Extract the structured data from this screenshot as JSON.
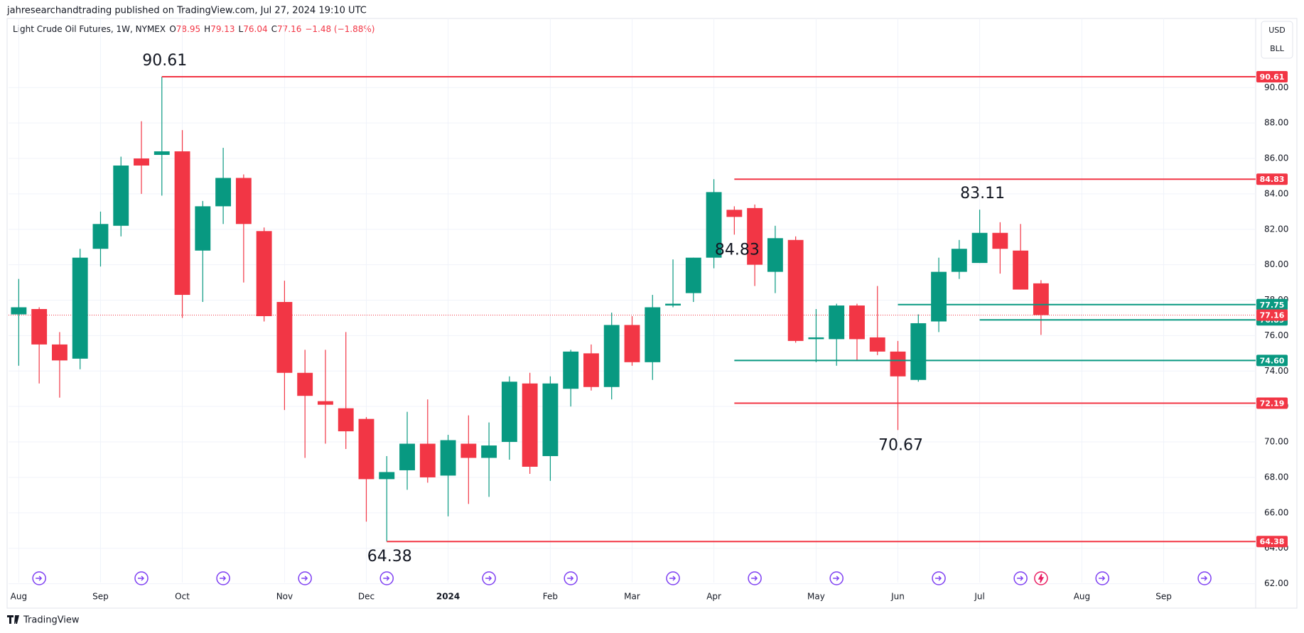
{
  "header": {
    "text": "jahresearchandtrading published on TradingView.com, Jul 27, 2024 19:10 UTC"
  },
  "footer": {
    "brand": "TradingView"
  },
  "chart_data": {
    "type": "candlestick",
    "title": "Light Crude Oil Futures, 1W, NYMEX",
    "ohlc": [
      {
        "label": "O",
        "value": 78.95
      },
      {
        "label": "H",
        "value": 79.13
      },
      {
        "label": "L",
        "value": 76.04
      },
      {
        "label": "C",
        "value": 77.16
      }
    ],
    "change": "−1.48 (−1.88%)",
    "currency": "USD",
    "unit": "BLL",
    "up_color": "#089981",
    "down_color": "#f23645",
    "open": [
      77.2,
      77.5,
      75.5,
      74.7,
      80.9,
      82.2,
      86.0,
      86.2,
      86.4,
      80.8,
      83.3,
      84.9,
      81.9,
      77.9,
      73.9,
      72.3,
      71.9,
      71.3,
      67.9,
      68.4,
      69.9,
      68.1,
      69.9,
      69.1,
      70.0,
      73.3,
      69.2,
      73.0,
      75.0,
      73.1,
      76.6,
      74.5,
      77.7,
      78.4,
      80.4,
      83.1,
      83.2,
      79.6,
      81.4,
      75.8,
      75.8,
      77.7,
      75.9,
      75.1,
      73.5,
      76.8,
      79.6,
      80.1,
      81.8,
      80.8,
      78.95
    ],
    "high": [
      79.2,
      77.6,
      76.2,
      80.9,
      83.0,
      86.1,
      88.1,
      90.61,
      87.6,
      83.6,
      86.6,
      85.1,
      82.1,
      79.1,
      75.2,
      75.2,
      76.2,
      71.4,
      69.2,
      71.7,
      72.4,
      70.4,
      71.5,
      71.1,
      73.7,
      73.9,
      73.7,
      75.2,
      75.5,
      77.3,
      77.1,
      78.3,
      80.3,
      80.4,
      84.83,
      83.3,
      83.4,
      82.2,
      81.6,
      77.5,
      77.8,
      77.8,
      78.8,
      75.7,
      77.2,
      80.4,
      81.4,
      83.11,
      82.4,
      82.3,
      79.13
    ],
    "low": [
      74.3,
      73.3,
      72.5,
      74.1,
      79.9,
      81.6,
      84.0,
      83.9,
      77.0,
      77.9,
      82.3,
      79.0,
      76.8,
      71.8,
      69.1,
      69.9,
      69.6,
      65.5,
      64.38,
      67.3,
      67.7,
      65.8,
      66.5,
      66.9,
      69.0,
      68.2,
      67.8,
      72.0,
      72.9,
      72.4,
      74.3,
      73.5,
      77.6,
      77.9,
      79.8,
      81.7,
      78.8,
      78.4,
      75.6,
      74.5,
      74.3,
      74.6,
      74.9,
      70.67,
      73.4,
      76.2,
      79.2,
      80.1,
      79.5,
      78.6,
      76.04
    ],
    "close": [
      77.6,
      75.5,
      74.6,
      80.4,
      82.3,
      85.6,
      85.6,
      86.4,
      78.3,
      83.3,
      84.9,
      82.3,
      77.1,
      73.9,
      72.6,
      72.1,
      70.6,
      67.9,
      68.3,
      69.9,
      68.0,
      70.1,
      69.1,
      69.8,
      73.4,
      68.6,
      73.3,
      75.1,
      73.1,
      76.6,
      74.5,
      77.6,
      77.8,
      80.4,
      84.1,
      82.7,
      80.0,
      81.5,
      75.7,
      75.9,
      77.7,
      75.8,
      75.1,
      73.7,
      76.7,
      79.6,
      80.9,
      81.8,
      80.9,
      78.6,
      77.16
    ],
    "xlim": [
      -0.5,
      60.5
    ],
    "xticks": [
      {
        "value": 0,
        "label": "Aug"
      },
      {
        "value": 4,
        "label": "Sep"
      },
      {
        "value": 8,
        "label": "Oct"
      },
      {
        "value": 13,
        "label": "Nov"
      },
      {
        "value": 17,
        "label": "Dec"
      },
      {
        "value": 21,
        "label": "2024"
      },
      {
        "value": 26,
        "label": "Feb"
      },
      {
        "value": 30,
        "label": "Mar"
      },
      {
        "value": 34,
        "label": "Apr"
      },
      {
        "value": 39,
        "label": "May"
      },
      {
        "value": 43,
        "label": "Jun"
      },
      {
        "value": 47,
        "label": "Jul"
      },
      {
        "value": 52,
        "label": "Aug"
      },
      {
        "value": 56,
        "label": "Sep"
      }
    ],
    "ylim": [
      60.7,
      93.9
    ],
    "yticks": [
      {
        "value": 62,
        "label": "62.00"
      },
      {
        "value": 64,
        "label": "64.00"
      },
      {
        "value": 66,
        "label": "66.00"
      },
      {
        "value": 68,
        "label": "68.00"
      },
      {
        "value": 70,
        "label": "70.00"
      },
      {
        "value": 72,
        "label": "72.00"
      },
      {
        "value": 74,
        "label": "74.00"
      },
      {
        "value": 76,
        "label": "76.00"
      },
      {
        "value": 78,
        "label": "78.00"
      },
      {
        "value": 80,
        "label": "80.00"
      },
      {
        "value": 82,
        "label": "82.00"
      },
      {
        "value": 84,
        "label": "84.00"
      },
      {
        "value": 86,
        "label": "86.00"
      },
      {
        "value": 88,
        "label": "88.00"
      },
      {
        "value": 90,
        "label": "90.00"
      }
    ],
    "grid": true,
    "levels": [
      {
        "value": 90.61,
        "color": "#f23645",
        "from": 7
      },
      {
        "value": 84.83,
        "color": "#f23645",
        "from": 35
      },
      {
        "value": 77.75,
        "color": "#089981",
        "from": 43
      },
      {
        "value": 76.89,
        "color": "#089981",
        "from": 47
      },
      {
        "value": 74.6,
        "label": "74.60",
        "color": "#089981",
        "from": 35
      },
      {
        "value": 72.19,
        "color": "#f23645",
        "from": 35
      },
      {
        "value": 64.38,
        "color": "#f23645",
        "from": 18
      }
    ],
    "last_price": {
      "value": 77.16,
      "color": "#f23645"
    },
    "annotations": [
      {
        "text": "90.61",
        "candle": 7
      },
      {
        "text": "84.83",
        "candle": 35
      },
      {
        "text": "83.11",
        "candle": 47
      },
      {
        "text": "70.67",
        "candle": 43
      },
      {
        "text": "64.38",
        "candle": 18
      }
    ]
  }
}
